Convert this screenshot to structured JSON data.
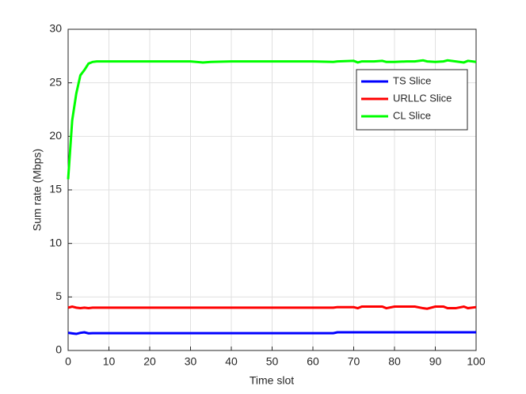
{
  "chart_data": {
    "type": "line",
    "xlabel": "Time slot",
    "ylabel": "Sum rate (Mbps)",
    "x": [
      0,
      1,
      2,
      3,
      4,
      5,
      6,
      7,
      8,
      10,
      15,
      20,
      25,
      30,
      33,
      35,
      40,
      45,
      50,
      55,
      60,
      65,
      66,
      70,
      71,
      72,
      75,
      77,
      78,
      80,
      83,
      85,
      87,
      88,
      90,
      92,
      93,
      95,
      97,
      98,
      100
    ],
    "series": [
      {
        "name": "TS Slice",
        "color": "#0000ff",
        "values": [
          1.65,
          1.6,
          1.55,
          1.65,
          1.7,
          1.6,
          1.62,
          1.62,
          1.62,
          1.62,
          1.62,
          1.62,
          1.62,
          1.62,
          1.62,
          1.62,
          1.62,
          1.62,
          1.62,
          1.62,
          1.62,
          1.62,
          1.7,
          1.7,
          1.7,
          1.7,
          1.7,
          1.7,
          1.7,
          1.7,
          1.7,
          1.7,
          1.7,
          1.7,
          1.7,
          1.7,
          1.7,
          1.7,
          1.7,
          1.7,
          1.7
        ]
      },
      {
        "name": "URLLC Slice",
        "color": "#ff0000",
        "values": [
          4.0,
          4.1,
          4.0,
          3.95,
          4.0,
          3.95,
          4.0,
          4.0,
          4.0,
          4.0,
          4.0,
          4.0,
          4.0,
          4.0,
          4.0,
          4.0,
          4.0,
          4.0,
          4.0,
          4.0,
          4.0,
          4.0,
          4.05,
          4.05,
          3.95,
          4.1,
          4.1,
          4.1,
          3.95,
          4.1,
          4.1,
          4.1,
          3.95,
          3.9,
          4.1,
          4.1,
          3.95,
          3.95,
          4.1,
          3.95,
          4.05
        ]
      },
      {
        "name": "CL Slice",
        "color": "#00ff00",
        "values": [
          16,
          21.5,
          24,
          25.7,
          26.2,
          26.8,
          26.95,
          27,
          27,
          27,
          27,
          27,
          27,
          27,
          26.9,
          26.95,
          27,
          27,
          27,
          27,
          27,
          26.95,
          27,
          27.05,
          26.9,
          27,
          27,
          27.05,
          26.95,
          26.95,
          27,
          27,
          27.1,
          27,
          26.95,
          27,
          27.1,
          27,
          26.9,
          27.05,
          26.95
        ]
      }
    ],
    "xlim": [
      0,
      100
    ],
    "xticks": [
      0,
      10,
      20,
      30,
      40,
      50,
      60,
      70,
      80,
      90,
      100
    ],
    "ylim": [
      0,
      30
    ],
    "yticks": [
      0,
      5,
      10,
      15,
      20,
      25,
      30
    ],
    "grid": true,
    "legend": "northeast"
  }
}
